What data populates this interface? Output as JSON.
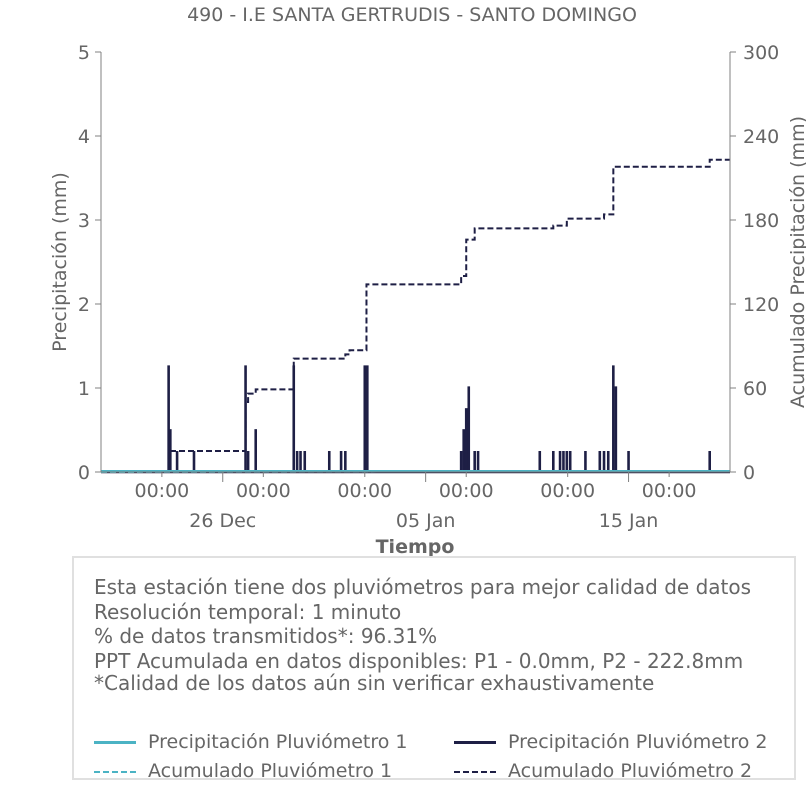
{
  "colors": {
    "p1": "#4bb3c4",
    "p2": "#1e1f45",
    "axis": "#808080",
    "text": "#666666"
  },
  "chart_data": {
    "type": "line",
    "title": "490 - I.E SANTA GERTRUDIS - SANTO DOMINGO",
    "xlabel": "Tiempo",
    "ylabel_left": "Precipitación (mm)",
    "ylabel_right": "Acumulado Precipitación (mm)",
    "ylim_left": [
      0,
      5
    ],
    "ylim_right": [
      0,
      300
    ],
    "yticks_left": [
      "0",
      "1",
      "2",
      "3",
      "4",
      "5"
    ],
    "yticks_right": [
      "0",
      "60",
      "120",
      "180",
      "240",
      "300"
    ],
    "xlim": [
      "2023-12-20",
      "2024-01-20"
    ],
    "xticks_major": [
      {
        "t": "2023-12-26",
        "label": "26 Dec"
      },
      {
        "t": "2024-01-05",
        "label": "05 Jan"
      },
      {
        "t": "2024-01-15",
        "label": "15 Jan"
      }
    ],
    "xticks_minor": [
      {
        "t": "2023-12-23",
        "label": "00:00"
      },
      {
        "t": "2023-12-28",
        "label": "00:00"
      },
      {
        "t": "2024-01-02",
        "label": "00:00"
      },
      {
        "t": "2024-01-07",
        "label": "00:00"
      },
      {
        "t": "2024-01-12",
        "label": "00:00"
      },
      {
        "t": "2024-01-17",
        "label": "00:00"
      }
    ],
    "series": [
      {
        "name": "Precipitación Pluviómetro 1",
        "axis": "left",
        "style": "solid",
        "t": [
          "2023-12-20",
          "2024-01-20"
        ],
        "values": [
          0.0,
          0.0
        ]
      },
      {
        "name": "Precipitación Pluviómetro 2",
        "axis": "left",
        "style": "solid",
        "spikes": [
          {
            "t": "2023-12-23 08:00",
            "v": 1.27
          },
          {
            "t": "2023-12-23 10:00",
            "v": 0.51
          },
          {
            "t": "2023-12-23 18:00",
            "v": 0.25
          },
          {
            "t": "2023-12-24 14:00",
            "v": 0.25
          },
          {
            "t": "2023-12-27 03:00",
            "v": 1.27
          },
          {
            "t": "2023-12-27 06:00",
            "v": 0.25
          },
          {
            "t": "2023-12-27 15:00",
            "v": 0.51
          },
          {
            "t": "2023-12-29 12:00",
            "v": 1.27
          },
          {
            "t": "2023-12-29 16:00",
            "v": 0.25
          },
          {
            "t": "2023-12-29 20:00",
            "v": 0.25
          },
          {
            "t": "2023-12-30 01:00",
            "v": 0.25
          },
          {
            "t": "2023-12-31 06:00",
            "v": 0.25
          },
          {
            "t": "2023-12-31 20:00",
            "v": 0.25
          },
          {
            "t": "2024-01-01 01:00",
            "v": 0.25
          },
          {
            "t": "2024-01-02 00:00",
            "v": 1.27
          },
          {
            "t": "2024-01-02 03:00",
            "v": 1.27
          },
          {
            "t": "2024-01-06 18:00",
            "v": 0.25
          },
          {
            "t": "2024-01-06 21:00",
            "v": 0.51
          },
          {
            "t": "2024-01-07 00:00",
            "v": 0.76
          },
          {
            "t": "2024-01-07 03:00",
            "v": 1.02
          },
          {
            "t": "2024-01-07 10:00",
            "v": 0.25
          },
          {
            "t": "2024-01-07 14:00",
            "v": 0.25
          },
          {
            "t": "2024-01-10 15:00",
            "v": 0.25
          },
          {
            "t": "2024-01-11 07:00",
            "v": 0.25
          },
          {
            "t": "2024-01-11 15:00",
            "v": 0.25
          },
          {
            "t": "2024-01-11 19:00",
            "v": 0.25
          },
          {
            "t": "2024-01-11 23:00",
            "v": 0.25
          },
          {
            "t": "2024-01-12 03:00",
            "v": 0.25
          },
          {
            "t": "2024-01-12 21:00",
            "v": 0.25
          },
          {
            "t": "2024-01-13 14:00",
            "v": 0.25
          },
          {
            "t": "2024-01-13 19:00",
            "v": 0.25
          },
          {
            "t": "2024-01-14 00:00",
            "v": 0.25
          },
          {
            "t": "2024-01-14 06:00",
            "v": 1.27
          },
          {
            "t": "2024-01-14 09:00",
            "v": 1.02
          },
          {
            "t": "2024-01-15 00:00",
            "v": 0.25
          },
          {
            "t": "2024-01-19 00:00",
            "v": 0.25
          }
        ]
      },
      {
        "name": "Acumulado Pluviómetro 1",
        "axis": "right",
        "style": "dashed",
        "t": [
          "2023-12-20",
          "2024-01-20"
        ],
        "values": [
          0.0,
          0.0
        ]
      },
      {
        "name": "Acumulado Pluviómetro 2",
        "axis": "right",
        "style": "dashed",
        "steps": [
          {
            "t": "2023-12-20 00:00",
            "v": 0
          },
          {
            "t": "2023-12-23 08:00",
            "v": 15
          },
          {
            "t": "2023-12-27 03:00",
            "v": 50
          },
          {
            "t": "2023-12-27 06:00",
            "v": 56
          },
          {
            "t": "2023-12-27 15:00",
            "v": 59
          },
          {
            "t": "2023-12-29 12:00",
            "v": 81
          },
          {
            "t": "2024-01-01 01:00",
            "v": 84
          },
          {
            "t": "2024-01-01 06:00",
            "v": 87
          },
          {
            "t": "2024-01-02 02:00",
            "v": 134
          },
          {
            "t": "2024-01-06 18:00",
            "v": 140
          },
          {
            "t": "2024-01-07 00:00",
            "v": 166
          },
          {
            "t": "2024-01-07 10:00",
            "v": 174
          },
          {
            "t": "2024-01-11 07:00",
            "v": 176
          },
          {
            "t": "2024-01-11 23:00",
            "v": 181
          },
          {
            "t": "2024-01-13 19:00",
            "v": 184
          },
          {
            "t": "2024-01-14 06:00",
            "v": 218
          },
          {
            "t": "2024-01-19 00:00",
            "v": 223
          },
          {
            "t": "2024-01-20 00:00",
            "v": 223
          }
        ]
      }
    ]
  },
  "info": {
    "line1": "Esta estación tiene dos pluviómetros para mejor calidad de datos",
    "line2": "Resolución temporal: 1 minuto",
    "line3": "% de datos transmitidos*: 96.31%",
    "line4": "PPT Acumulada en datos disponibles: P1 - 0.0mm, P2 - 222.8mm",
    "line5": "*Calidad de los datos aún sin verificar exhaustivamente"
  },
  "legend": [
    {
      "label": "Precipitación Pluviómetro 1",
      "color": "#4bb3c4",
      "style": "solid"
    },
    {
      "label": "Precipitación Pluviómetro 2",
      "color": "#1e1f45",
      "style": "solid"
    },
    {
      "label": "Acumulado Pluviómetro 1",
      "color": "#4bb3c4",
      "style": "dashed"
    },
    {
      "label": "Acumulado Pluviómetro 2",
      "color": "#1e1f45",
      "style": "dashed"
    }
  ]
}
